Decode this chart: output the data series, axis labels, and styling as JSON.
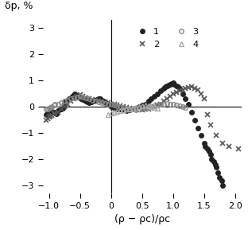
{
  "title": "",
  "ylabel": "δp, %",
  "xlabel": "(ρ − ρc)/ρc",
  "xlim": [
    -1.1,
    2.1
  ],
  "ylim": [
    -3.3,
    3.3
  ],
  "xticks": [
    -1.0,
    -0.5,
    0,
    0.5,
    1.0,
    1.5,
    2.0
  ],
  "yticks": [
    -3,
    -2,
    -1,
    0,
    1,
    2,
    3
  ],
  "series1_x": [
    -1.05,
    -1.02,
    -1.0,
    -0.98,
    -0.95,
    -0.92,
    -0.9,
    -0.88,
    -0.85,
    -0.82,
    -0.8,
    -0.78,
    -0.75,
    -0.72,
    -0.7,
    -0.68,
    -0.65,
    -0.62,
    -0.6,
    -0.58,
    -0.55,
    -0.52,
    -0.5,
    -0.48,
    -0.45,
    -0.42,
    -0.4,
    -0.38,
    -0.35,
    -0.32,
    -0.3,
    -0.28,
    -0.25,
    -0.22,
    -0.2,
    -0.18,
    -0.15,
    -0.12,
    -0.1,
    -0.08,
    -0.05,
    -0.02,
    0.0,
    0.05,
    0.1,
    0.15,
    0.2,
    0.25,
    0.3,
    0.35,
    0.4,
    0.45,
    0.5,
    0.55,
    0.6,
    0.65,
    0.7,
    0.75,
    0.8,
    0.85,
    0.88,
    0.9,
    0.92,
    0.95,
    0.98,
    1.0,
    1.02,
    1.05,
    1.08,
    1.1,
    1.15,
    1.2,
    1.25,
    1.3,
    1.35,
    1.4,
    1.45,
    1.5,
    1.52,
    1.55,
    1.58,
    1.6,
    1.62,
    1.65,
    1.68,
    1.7,
    1.72,
    1.75,
    1.78,
    1.8
  ],
  "series1_y": [
    -0.3,
    -0.25,
    -0.2,
    -0.15,
    -0.18,
    -0.22,
    -0.25,
    -0.28,
    -0.15,
    -0.1,
    -0.08,
    -0.05,
    0.1,
    0.2,
    0.25,
    0.3,
    0.35,
    0.4,
    0.45,
    0.5,
    0.42,
    0.38,
    0.35,
    0.3,
    0.28,
    0.25,
    0.2,
    0.18,
    0.15,
    0.18,
    0.2,
    0.22,
    0.25,
    0.28,
    0.3,
    0.32,
    0.25,
    0.2,
    0.18,
    0.15,
    0.1,
    0.05,
    0.0,
    -0.05,
    -0.08,
    -0.1,
    -0.12,
    -0.15,
    -0.12,
    -0.08,
    -0.05,
    0.0,
    0.05,
    0.1,
    0.2,
    0.3,
    0.4,
    0.5,
    0.6,
    0.7,
    0.75,
    0.8,
    0.82,
    0.85,
    0.88,
    0.9,
    0.85,
    0.8,
    0.75,
    0.7,
    0.5,
    0.3,
    0.1,
    -0.2,
    -0.5,
    -0.8,
    -1.1,
    -1.4,
    -1.5,
    -1.6,
    -1.7,
    -1.8,
    -2.0,
    -2.1,
    -2.2,
    -2.3,
    -2.5,
    -2.7,
    -2.8,
    -3.0
  ],
  "series2_x": [
    -1.05,
    -1.02,
    -1.0,
    -0.98,
    -0.95,
    -0.92,
    -0.9,
    -0.85,
    -0.8,
    -0.75,
    -0.7,
    -0.65,
    -0.6,
    -0.55,
    -0.5,
    -0.45,
    -0.4,
    -0.35,
    -0.3,
    -0.25,
    -0.2,
    -0.15,
    -0.1,
    -0.05,
    0.0,
    0.05,
    0.1,
    0.15,
    0.2,
    0.25,
    0.3,
    0.35,
    0.4,
    0.5,
    0.55,
    0.6,
    0.65,
    0.7,
    0.75,
    0.8,
    0.85,
    0.9,
    0.95,
    1.0,
    1.05,
    1.1,
    1.15,
    1.2,
    1.25,
    1.3,
    1.35,
    1.4,
    1.45,
    1.5,
    1.55,
    1.6,
    1.7,
    1.8,
    1.9,
    2.05
  ],
  "series2_y": [
    -0.5,
    -0.45,
    -0.4,
    -0.35,
    -0.32,
    -0.28,
    -0.25,
    -0.2,
    -0.1,
    0.0,
    0.1,
    0.2,
    0.3,
    0.4,
    0.45,
    0.4,
    0.35,
    0.3,
    0.28,
    0.25,
    0.22,
    0.2,
    0.18,
    0.15,
    0.1,
    0.08,
    0.05,
    0.02,
    0.0,
    -0.02,
    -0.05,
    -0.08,
    -0.1,
    -0.12,
    -0.1,
    -0.08,
    -0.05,
    0.0,
    0.05,
    0.1,
    0.2,
    0.3,
    0.4,
    0.5,
    0.55,
    0.6,
    0.65,
    0.7,
    0.72,
    0.75,
    0.7,
    0.65,
    0.5,
    0.3,
    -0.3,
    -0.7,
    -1.1,
    -1.4,
    -1.5,
    -1.6
  ],
  "series3_x": [
    -1.05,
    -1.02,
    -1.0,
    -0.98,
    -0.95,
    -0.92,
    -0.9,
    -0.85,
    -0.8,
    -0.75,
    -0.7,
    -0.65,
    -0.6,
    -0.55,
    -0.5,
    -0.45,
    -0.4,
    -0.35,
    -0.3,
    -0.25,
    -0.2,
    -0.15,
    -0.1,
    -0.05,
    0.0,
    0.05,
    0.1,
    0.15,
    0.2,
    0.25,
    0.3,
    0.35,
    0.4,
    0.45,
    0.5,
    0.55,
    0.6,
    0.65,
    0.7,
    0.75,
    0.8,
    0.85,
    0.9,
    0.95,
    1.0,
    1.05,
    1.1,
    1.15,
    1.2
  ],
  "series3_y": [
    -0.1,
    -0.08,
    -0.05,
    -0.02,
    0.0,
    0.05,
    0.08,
    0.1,
    0.15,
    0.2,
    0.25,
    0.3,
    0.35,
    0.38,
    0.4,
    0.38,
    0.35,
    0.3,
    0.25,
    0.2,
    0.18,
    0.15,
    0.12,
    0.1,
    0.08,
    0.05,
    0.02,
    0.0,
    -0.02,
    -0.05,
    -0.08,
    -0.1,
    -0.12,
    -0.1,
    -0.08,
    -0.05,
    -0.02,
    0.0,
    0.02,
    0.05,
    0.08,
    0.1,
    0.12,
    0.1,
    0.08,
    0.05,
    0.02,
    0.0,
    -0.02
  ],
  "series4_x": [
    -0.05,
    0.0,
    0.05,
    0.1,
    0.15,
    0.2,
    0.25,
    0.3,
    0.35,
    0.4,
    0.45,
    0.5,
    0.55,
    0.6,
    0.65,
    0.7,
    0.75
  ],
  "series4_y": [
    -0.3,
    -0.25,
    -0.2,
    -0.18,
    -0.15,
    -0.12,
    -0.1,
    -0.08,
    -0.05,
    -0.02,
    0.0,
    0.02,
    0.05,
    0.02,
    0.0,
    -0.02,
    -0.05
  ],
  "marker1": "o",
  "marker2": "x",
  "marker3": "o",
  "marker4": "^",
  "color1": "#222222",
  "color2": "#555555",
  "color3": "#888888",
  "color4": "#aaaaaa",
  "ms1": 4,
  "ms2": 5,
  "ms3": 4,
  "ms4": 4
}
